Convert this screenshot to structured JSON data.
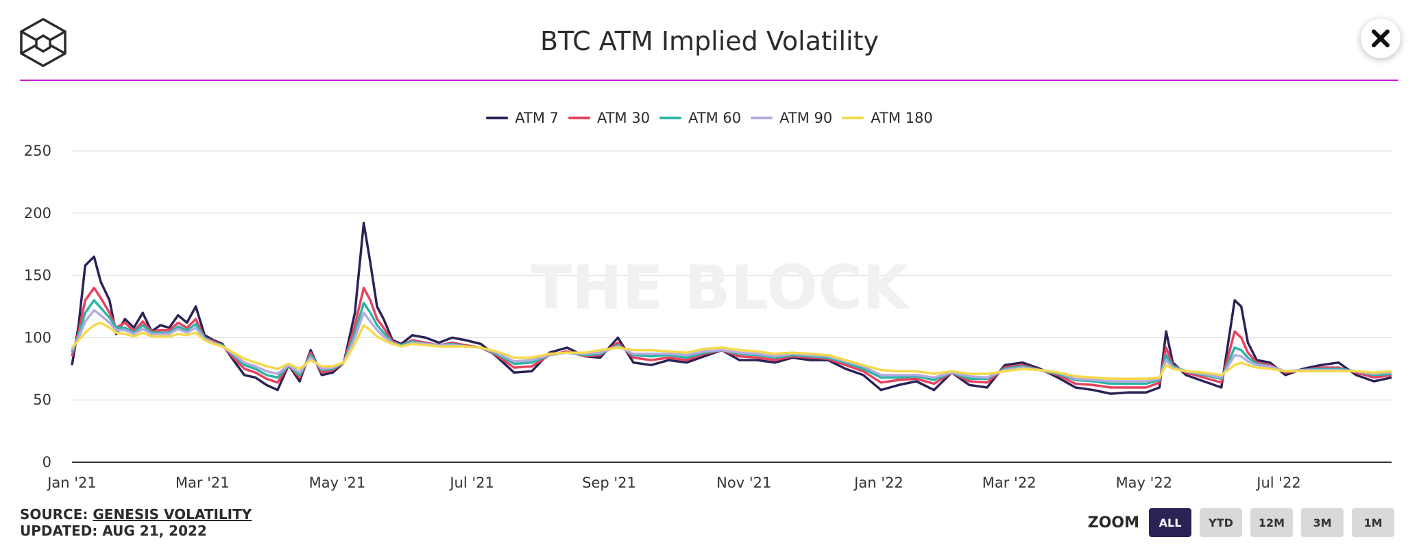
{
  "header": {
    "title": "BTC ATM Implied Volatility",
    "logo_icon": "cube-logo-icon",
    "close_icon": "close-icon",
    "accent_color": "#c61ed6"
  },
  "watermark": "THE BLOCK",
  "footer": {
    "source_label": "SOURCE:",
    "source_link": "GENESIS VOLATILITY",
    "updated": "UPDATED: AUG 21, 2022"
  },
  "zoom": {
    "label": "ZOOM",
    "buttons": [
      "ALL",
      "YTD",
      "12M",
      "3M",
      "1M"
    ],
    "selected": "ALL"
  },
  "chart_data": {
    "type": "line",
    "title": "BTC ATM Implied Volatility",
    "xlabel": "",
    "ylabel": "",
    "ylim": [
      0,
      250
    ],
    "yticks": [
      0,
      50,
      100,
      150,
      200,
      250
    ],
    "xlim": [
      "2021-01-01",
      "2022-08-21"
    ],
    "xtick_labels": [
      "Jan '21",
      "Mar '21",
      "May '21",
      "Jul '21",
      "Sep '21",
      "Nov '21",
      "Jan '22",
      "Mar '22",
      "May '22",
      "Jul '22"
    ],
    "xtick_dates": [
      "2021-01-01",
      "2021-03-01",
      "2021-05-01",
      "2021-07-01",
      "2021-09-01",
      "2021-11-01",
      "2022-01-01",
      "2022-03-01",
      "2022-05-01",
      "2022-07-01"
    ],
    "grid": true,
    "legend_position": "top-center",
    "x": [
      "2021-01-01",
      "2021-01-04",
      "2021-01-07",
      "2021-01-11",
      "2021-01-14",
      "2021-01-18",
      "2021-01-21",
      "2021-01-25",
      "2021-01-29",
      "2021-02-02",
      "2021-02-06",
      "2021-02-10",
      "2021-02-14",
      "2021-02-18",
      "2021-02-22",
      "2021-02-26",
      "2021-03-02",
      "2021-03-06",
      "2021-03-10",
      "2021-03-15",
      "2021-03-20",
      "2021-03-25",
      "2021-03-30",
      "2021-04-04",
      "2021-04-09",
      "2021-04-14",
      "2021-04-19",
      "2021-04-24",
      "2021-04-29",
      "2021-05-04",
      "2021-05-09",
      "2021-05-13",
      "2021-05-16",
      "2021-05-19",
      "2021-05-22",
      "2021-05-26",
      "2021-05-30",
      "2021-06-04",
      "2021-06-10",
      "2021-06-16",
      "2021-06-22",
      "2021-06-28",
      "2021-07-05",
      "2021-07-12",
      "2021-07-20",
      "2021-07-28",
      "2021-08-05",
      "2021-08-13",
      "2021-08-21",
      "2021-08-28",
      "2021-09-05",
      "2021-09-12",
      "2021-09-20",
      "2021-09-28",
      "2021-10-06",
      "2021-10-14",
      "2021-10-22",
      "2021-10-30",
      "2021-11-07",
      "2021-11-15",
      "2021-11-23",
      "2021-12-01",
      "2021-12-09",
      "2021-12-17",
      "2021-12-25",
      "2022-01-02",
      "2022-01-10",
      "2022-01-18",
      "2022-01-26",
      "2022-02-03",
      "2022-02-11",
      "2022-02-19",
      "2022-02-27",
      "2022-03-07",
      "2022-03-15",
      "2022-03-23",
      "2022-03-31",
      "2022-04-08",
      "2022-04-16",
      "2022-04-24",
      "2022-05-02",
      "2022-05-08",
      "2022-05-11",
      "2022-05-14",
      "2022-05-20",
      "2022-05-28",
      "2022-06-05",
      "2022-06-11",
      "2022-06-14",
      "2022-06-17",
      "2022-06-21",
      "2022-06-27",
      "2022-07-04",
      "2022-07-12",
      "2022-07-20",
      "2022-07-28",
      "2022-08-05",
      "2022-08-13",
      "2022-08-21"
    ],
    "series": [
      {
        "name": "ATM 7",
        "color": "#2b2256",
        "values": [
          78,
          110,
          158,
          165,
          145,
          130,
          103,
          115,
          108,
          120,
          105,
          110,
          108,
          118,
          112,
          125,
          102,
          98,
          95,
          82,
          70,
          68,
          62,
          58,
          78,
          65,
          90,
          70,
          72,
          80,
          120,
          192,
          160,
          125,
          115,
          98,
          95,
          102,
          100,
          96,
          100,
          98,
          95,
          85,
          72,
          73,
          88,
          92,
          85,
          84,
          100,
          80,
          78,
          82,
          80,
          85,
          90,
          82,
          82,
          80,
          84,
          82,
          82,
          75,
          70,
          58,
          62,
          65,
          58,
          72,
          62,
          60,
          78,
          80,
          75,
          68,
          60,
          58,
          55,
          56,
          56,
          60,
          105,
          80,
          70,
          65,
          60,
          130,
          125,
          96,
          82,
          80,
          70,
          75,
          78,
          80,
          70,
          65,
          68
        ]
      },
      {
        "name": "ATM 30",
        "color": "#e8415f",
        "values": [
          85,
          105,
          130,
          140,
          132,
          120,
          108,
          112,
          105,
          113,
          105,
          106,
          106,
          112,
          108,
          115,
          100,
          97,
          94,
          84,
          75,
          72,
          67,
          64,
          78,
          68,
          88,
          72,
          74,
          80,
          110,
          140,
          130,
          115,
          108,
          97,
          94,
          98,
          96,
          94,
          96,
          94,
          92,
          86,
          76,
          77,
          86,
          89,
          85,
          86,
          96,
          84,
          82,
          84,
          82,
          87,
          90,
          85,
          84,
          82,
          85,
          84,
          83,
          78,
          73,
          64,
          66,
          67,
          63,
          72,
          65,
          64,
          76,
          78,
          74,
          70,
          63,
          62,
          60,
          60,
          60,
          64,
          92,
          78,
          72,
          68,
          64,
          105,
          100,
          88,
          80,
          78,
          72,
          74,
          76,
          76,
          72,
          68,
          70
        ]
      },
      {
        "name": "ATM 60",
        "color": "#2bb5a6",
        "values": [
          88,
          102,
          120,
          130,
          124,
          116,
          108,
          108,
          104,
          110,
          104,
          104,
          104,
          109,
          106,
          111,
          100,
          96,
          94,
          86,
          78,
          75,
          70,
          68,
          78,
          70,
          86,
          74,
          75,
          80,
          104,
          128,
          120,
          110,
          104,
          96,
          94,
          97,
          95,
          94,
          95,
          93,
          92,
          87,
          79,
          80,
          86,
          88,
          86,
          87,
          94,
          86,
          85,
          86,
          84,
          88,
          90,
          87,
          86,
          84,
          86,
          85,
          84,
          80,
          75,
          68,
          68,
          69,
          66,
          72,
          67,
          67,
          75,
          77,
          74,
          71,
          66,
          65,
          63,
          63,
          63,
          66,
          86,
          77,
          73,
          70,
          67,
          92,
          90,
          84,
          79,
          77,
          73,
          74,
          75,
          75,
          73,
          70,
          71
        ]
      },
      {
        "name": "ATM 90",
        "color": "#b3aadf",
        "values": [
          90,
          100,
          113,
          122,
          118,
          112,
          106,
          106,
          103,
          107,
          103,
          103,
          103,
          107,
          104,
          108,
          99,
          96,
          93,
          87,
          80,
          77,
          73,
          71,
          78,
          72,
          84,
          75,
          76,
          80,
          100,
          120,
          113,
          106,
          101,
          96,
          93,
          96,
          95,
          94,
          94,
          93,
          92,
          88,
          81,
          82,
          86,
          88,
          87,
          88,
          93,
          87,
          87,
          87,
          86,
          89,
          90,
          88,
          87,
          85,
          87,
          86,
          85,
          81,
          77,
          70,
          70,
          70,
          68,
          72,
          69,
          68,
          74,
          76,
          74,
          72,
          67,
          66,
          65,
          65,
          65,
          67,
          82,
          76,
          73,
          71,
          68,
          86,
          85,
          81,
          78,
          77,
          73,
          74,
          74,
          74,
          73,
          71,
          72
        ]
      },
      {
        "name": "ATM 180",
        "color": "#f5d94a",
        "values": [
          92,
          98,
          104,
          110,
          112,
          108,
          104,
          103,
          101,
          104,
          101,
          101,
          101,
          103,
          102,
          104,
          98,
          95,
          93,
          88,
          83,
          80,
          77,
          75,
          79,
          75,
          82,
          77,
          77,
          80,
          95,
          110,
          106,
          101,
          98,
          95,
          93,
          95,
          94,
          93,
          93,
          93,
          92,
          89,
          84,
          84,
          87,
          88,
          88,
          90,
          92,
          90,
          90,
          89,
          88,
          91,
          92,
          90,
          89,
          87,
          88,
          87,
          86,
          82,
          78,
          74,
          73,
          73,
          71,
          73,
          71,
          71,
          73,
          75,
          74,
          72,
          69,
          68,
          67,
          67,
          67,
          68,
          78,
          75,
          73,
          72,
          70,
          78,
          80,
          78,
          76,
          75,
          73,
          73,
          73,
          73,
          73,
          72,
          73
        ]
      }
    ]
  }
}
